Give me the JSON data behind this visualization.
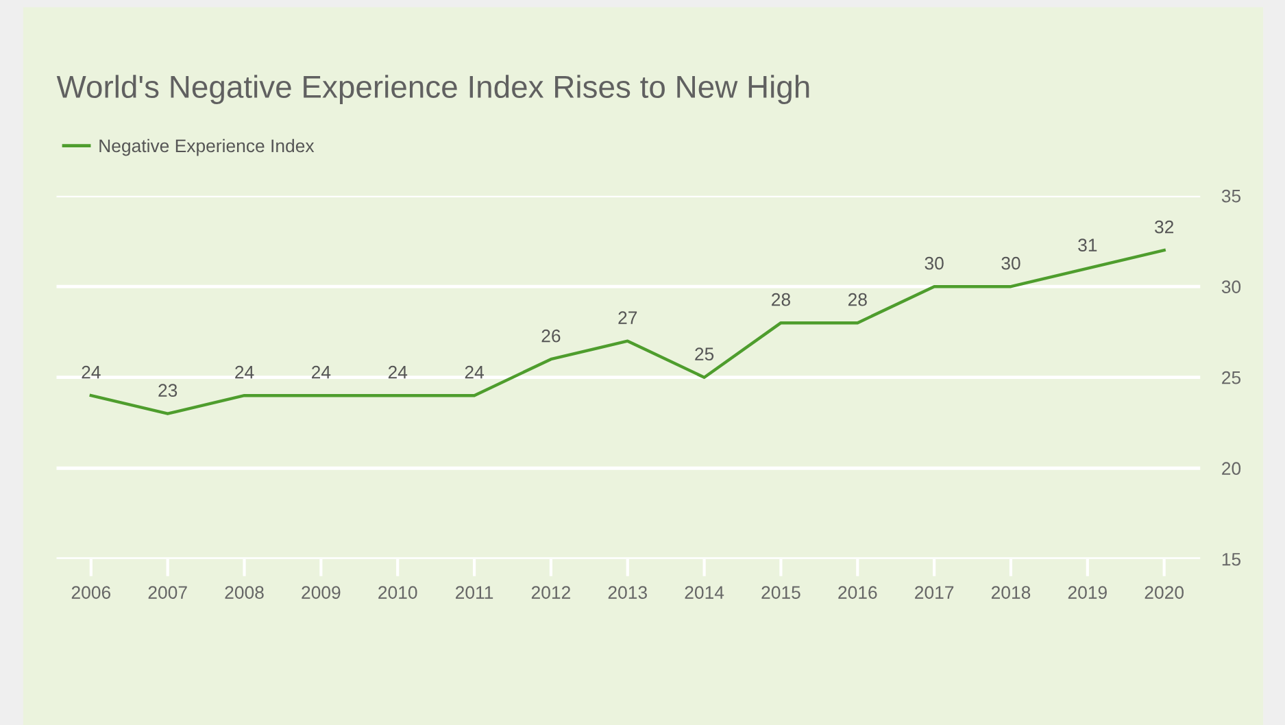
{
  "chart_data": {
    "type": "line",
    "title": "World's Negative Experience Index Rises to New High",
    "categories": [
      "2006",
      "2007",
      "2008",
      "2009",
      "2010",
      "2011",
      "2012",
      "2013",
      "2014",
      "2015",
      "2016",
      "2017",
      "2018",
      "2019",
      "2020"
    ],
    "series": [
      {
        "name": "Negative Experience Index",
        "color": "#4e9d2d",
        "values": [
          24,
          23,
          24,
          24,
          24,
          24,
          26,
          27,
          25,
          28,
          28,
          30,
          30,
          31,
          32
        ]
      }
    ],
    "ylim": [
      15,
      35
    ],
    "yticks": [
      15,
      20,
      25,
      30,
      35
    ],
    "grid": "y",
    "legend": "top left",
    "data_labels": true,
    "marker": "none",
    "line_style": "solid"
  }
}
